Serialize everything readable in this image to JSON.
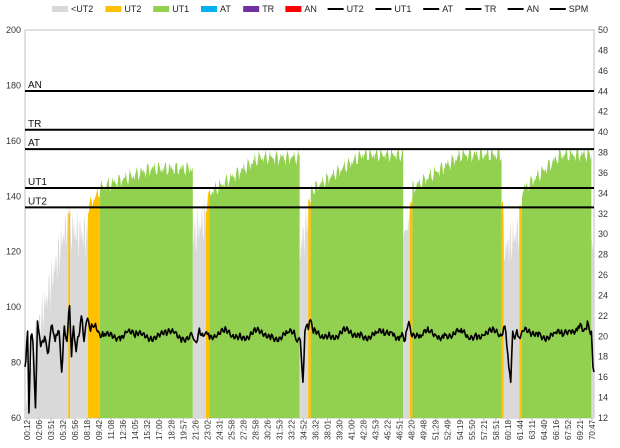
{
  "chart_data": {
    "type": "area",
    "legend": {
      "placement": "top",
      "items": [
        {
          "label": "<UT2",
          "kind": "area",
          "color": "#d9d9d9"
        },
        {
          "label": "UT2",
          "kind": "area",
          "color": "#ffc000"
        },
        {
          "label": "UT1",
          "kind": "area",
          "color": "#92d050"
        },
        {
          "label": "AT",
          "kind": "area",
          "color": "#00b0f0"
        },
        {
          "label": "TR",
          "kind": "area",
          "color": "#7030a0"
        },
        {
          "label": "AN",
          "kind": "area",
          "color": "#ff0000"
        },
        {
          "label": "UT2",
          "kind": "line",
          "color": "#000000"
        },
        {
          "label": "UT1",
          "kind": "line",
          "color": "#000000"
        },
        {
          "label": "AT",
          "kind": "line",
          "color": "#000000"
        },
        {
          "label": "TR",
          "kind": "line",
          "color": "#000000"
        },
        {
          "label": "AN",
          "kind": "line",
          "color": "#000000"
        },
        {
          "label": "SPM",
          "kind": "line",
          "color": "#000000"
        }
      ]
    },
    "y_left": {
      "min": 60,
      "max": 200,
      "ticks": [
        60,
        80,
        100,
        120,
        140,
        160,
        180,
        200
      ]
    },
    "y_right": {
      "min": 12,
      "max": 50,
      "ticks": [
        12,
        14,
        16,
        18,
        20,
        22,
        24,
        26,
        28,
        30,
        32,
        34,
        36,
        38,
        40,
        42,
        44,
        46,
        48,
        50
      ]
    },
    "duration_seconds": 4340,
    "x_ticks": [
      "00:12",
      "02:06",
      "03:51",
      "05:32",
      "06:56",
      "08:18",
      "09:42",
      "11:08",
      "12:36",
      "14:05",
      "15:32",
      "17:00",
      "18:28",
      "19:57",
      "21:26",
      "23:02",
      "24:31",
      "25:58",
      "27:28",
      "28:58",
      "30:26",
      "31:53",
      "33:22",
      "34:52",
      "36:32",
      "38:01",
      "39:30",
      "41:00",
      "42:28",
      "43:53",
      "45:22",
      "46:51",
      "48:20",
      "49:48",
      "51:29",
      "52:49",
      "54:19",
      "55:50",
      "57:21",
      "58:51",
      "60:18",
      "61:44",
      "63:11",
      "64:40",
      "66:16",
      "67:52",
      "69:21",
      "70:47"
    ],
    "reference_lines": [
      {
        "label": "AN",
        "value": 178
      },
      {
        "label": "TR",
        "value": 164
      },
      {
        "label": "AT",
        "value": 157
      },
      {
        "label": "UT1",
        "value": 143
      },
      {
        "label": "UT2",
        "value": 136
      }
    ],
    "hr_segments": [
      {
        "t_start": 0,
        "t_end": 60,
        "hr_start": 62,
        "hr_end": 85,
        "zone": "<UT2"
      },
      {
        "t_start": 60,
        "t_end": 330,
        "hr_start": 85,
        "hr_end": 132,
        "zone": "<UT2"
      },
      {
        "t_start": 330,
        "t_end": 345,
        "hr_start": 132,
        "hr_end": 136,
        "zone": "UT2"
      },
      {
        "t_start": 345,
        "t_end": 480,
        "hr_start": 128,
        "hr_end": 126,
        "zone": "<UT2"
      },
      {
        "t_start": 480,
        "t_end": 570,
        "hr_start": 136,
        "hr_end": 142,
        "zone": "UT2"
      },
      {
        "t_start": 570,
        "t_end": 1280,
        "hr_start": 143,
        "hr_end": 150,
        "zone": "UT1"
      },
      {
        "t_start": 1280,
        "t_end": 1380,
        "hr_start": 125,
        "hr_end": 133,
        "zone": "<UT2"
      },
      {
        "t_start": 1380,
        "t_end": 1405,
        "hr_start": 136,
        "hr_end": 140,
        "zone": "UT2"
      },
      {
        "t_start": 1405,
        "t_end": 2095,
        "hr_start": 141,
        "hr_end": 154,
        "zone": "UT1"
      },
      {
        "t_start": 2095,
        "t_end": 2160,
        "hr_start": 120,
        "hr_end": 133,
        "zone": "<UT2"
      },
      {
        "t_start": 2160,
        "t_end": 2180,
        "hr_start": 136,
        "hr_end": 138,
        "zone": "UT2"
      },
      {
        "t_start": 2180,
        "t_end": 2885,
        "hr_start": 142,
        "hr_end": 155,
        "zone": "UT1"
      },
      {
        "t_start": 2885,
        "t_end": 2935,
        "hr_start": 125,
        "hr_end": 133,
        "zone": "<UT2"
      },
      {
        "t_start": 2935,
        "t_end": 2955,
        "hr_start": 136,
        "hr_end": 138,
        "zone": "UT2"
      },
      {
        "t_start": 2955,
        "t_end": 3635,
        "hr_start": 143,
        "hr_end": 155,
        "zone": "UT1"
      },
      {
        "t_start": 3635,
        "t_end": 3650,
        "hr_start": 136,
        "hr_end": 135,
        "zone": "UT2"
      },
      {
        "t_start": 3650,
        "t_end": 3770,
        "hr_start": 120,
        "hr_end": 128,
        "zone": "<UT2"
      },
      {
        "t_start": 3770,
        "t_end": 3790,
        "hr_start": 136,
        "hr_end": 138,
        "zone": "UT2"
      },
      {
        "t_start": 3790,
        "t_end": 4320,
        "hr_start": 142,
        "hr_end": 155,
        "zone": "UT1"
      },
      {
        "t_start": 4320,
        "t_end": 4340,
        "hr_start": 125,
        "hr_end": 120,
        "zone": "<UT2"
      }
    ],
    "spm_points": [
      [
        0,
        17
      ],
      [
        20,
        20.5
      ],
      [
        30,
        12.5
      ],
      [
        45,
        20
      ],
      [
        60,
        19.5
      ],
      [
        80,
        13
      ],
      [
        95,
        21.5
      ],
      [
        120,
        19
      ],
      [
        150,
        20
      ],
      [
        180,
        18.5
      ],
      [
        200,
        21
      ],
      [
        230,
        19.5
      ],
      [
        260,
        20.5
      ],
      [
        280,
        16.5
      ],
      [
        300,
        21
      ],
      [
        320,
        19.5
      ],
      [
        340,
        23
      ],
      [
        355,
        18
      ],
      [
        370,
        21
      ],
      [
        390,
        18.5
      ],
      [
        410,
        20
      ],
      [
        430,
        22
      ],
      [
        450,
        19.5
      ],
      [
        470,
        21.5
      ],
      [
        500,
        20.5
      ],
      [
        530,
        21
      ],
      [
        560,
        20.5
      ],
      [
        600,
        20
      ],
      [
        660,
        20.3
      ],
      [
        720,
        20
      ],
      [
        780,
        20.4
      ],
      [
        840,
        19.9
      ],
      [
        900,
        20.3
      ],
      [
        960,
        20
      ],
      [
        1020,
        20.2
      ],
      [
        1080,
        20.1
      ],
      [
        1140,
        20.3
      ],
      [
        1200,
        19.9
      ],
      [
        1260,
        20.2
      ],
      [
        1300,
        19.5
      ],
      [
        1330,
        20.8
      ],
      [
        1360,
        20
      ],
      [
        1400,
        20.3
      ],
      [
        1460,
        19.9
      ],
      [
        1520,
        20.4
      ],
      [
        1580,
        20
      ],
      [
        1640,
        20.3
      ],
      [
        1700,
        19.9
      ],
      [
        1760,
        20.4
      ],
      [
        1820,
        20
      ],
      [
        1880,
        20.2
      ],
      [
        1940,
        19.9
      ],
      [
        2000,
        20.3
      ],
      [
        2060,
        20
      ],
      [
        2100,
        19.6
      ],
      [
        2120,
        15.5
      ],
      [
        2135,
        20.5
      ],
      [
        2170,
        21.5
      ],
      [
        2200,
        20.3
      ],
      [
        2260,
        19.9
      ],
      [
        2320,
        20.4
      ],
      [
        2380,
        20
      ],
      [
        2440,
        20.5
      ],
      [
        2500,
        19.9
      ],
      [
        2560,
        20.4
      ],
      [
        2620,
        20
      ],
      [
        2680,
        20.3
      ],
      [
        2740,
        20.1
      ],
      [
        2800,
        20.4
      ],
      [
        2860,
        20
      ],
      [
        2900,
        19.6
      ],
      [
        2920,
        21
      ],
      [
        2960,
        20.3
      ],
      [
        3020,
        19.9
      ],
      [
        3080,
        20.4
      ],
      [
        3140,
        20
      ],
      [
        3200,
        20.3
      ],
      [
        3260,
        20
      ],
      [
        3320,
        20.4
      ],
      [
        3380,
        19.9
      ],
      [
        3440,
        20.3
      ],
      [
        3500,
        20.1
      ],
      [
        3560,
        20.4
      ],
      [
        3620,
        20
      ],
      [
        3660,
        21
      ],
      [
        3690,
        17
      ],
      [
        3705,
        15.5
      ],
      [
        3720,
        20.5
      ],
      [
        3760,
        20
      ],
      [
        3800,
        20.5
      ],
      [
        3860,
        20
      ],
      [
        3920,
        20.4
      ],
      [
        3980,
        20
      ],
      [
        4040,
        20.3
      ],
      [
        4100,
        20
      ],
      [
        4160,
        20.5
      ],
      [
        4220,
        21
      ],
      [
        4260,
        20.5
      ],
      [
        4290,
        21.5
      ],
      [
        4320,
        20.5
      ],
      [
        4332,
        17
      ],
      [
        4340,
        16.5
      ]
    ]
  }
}
